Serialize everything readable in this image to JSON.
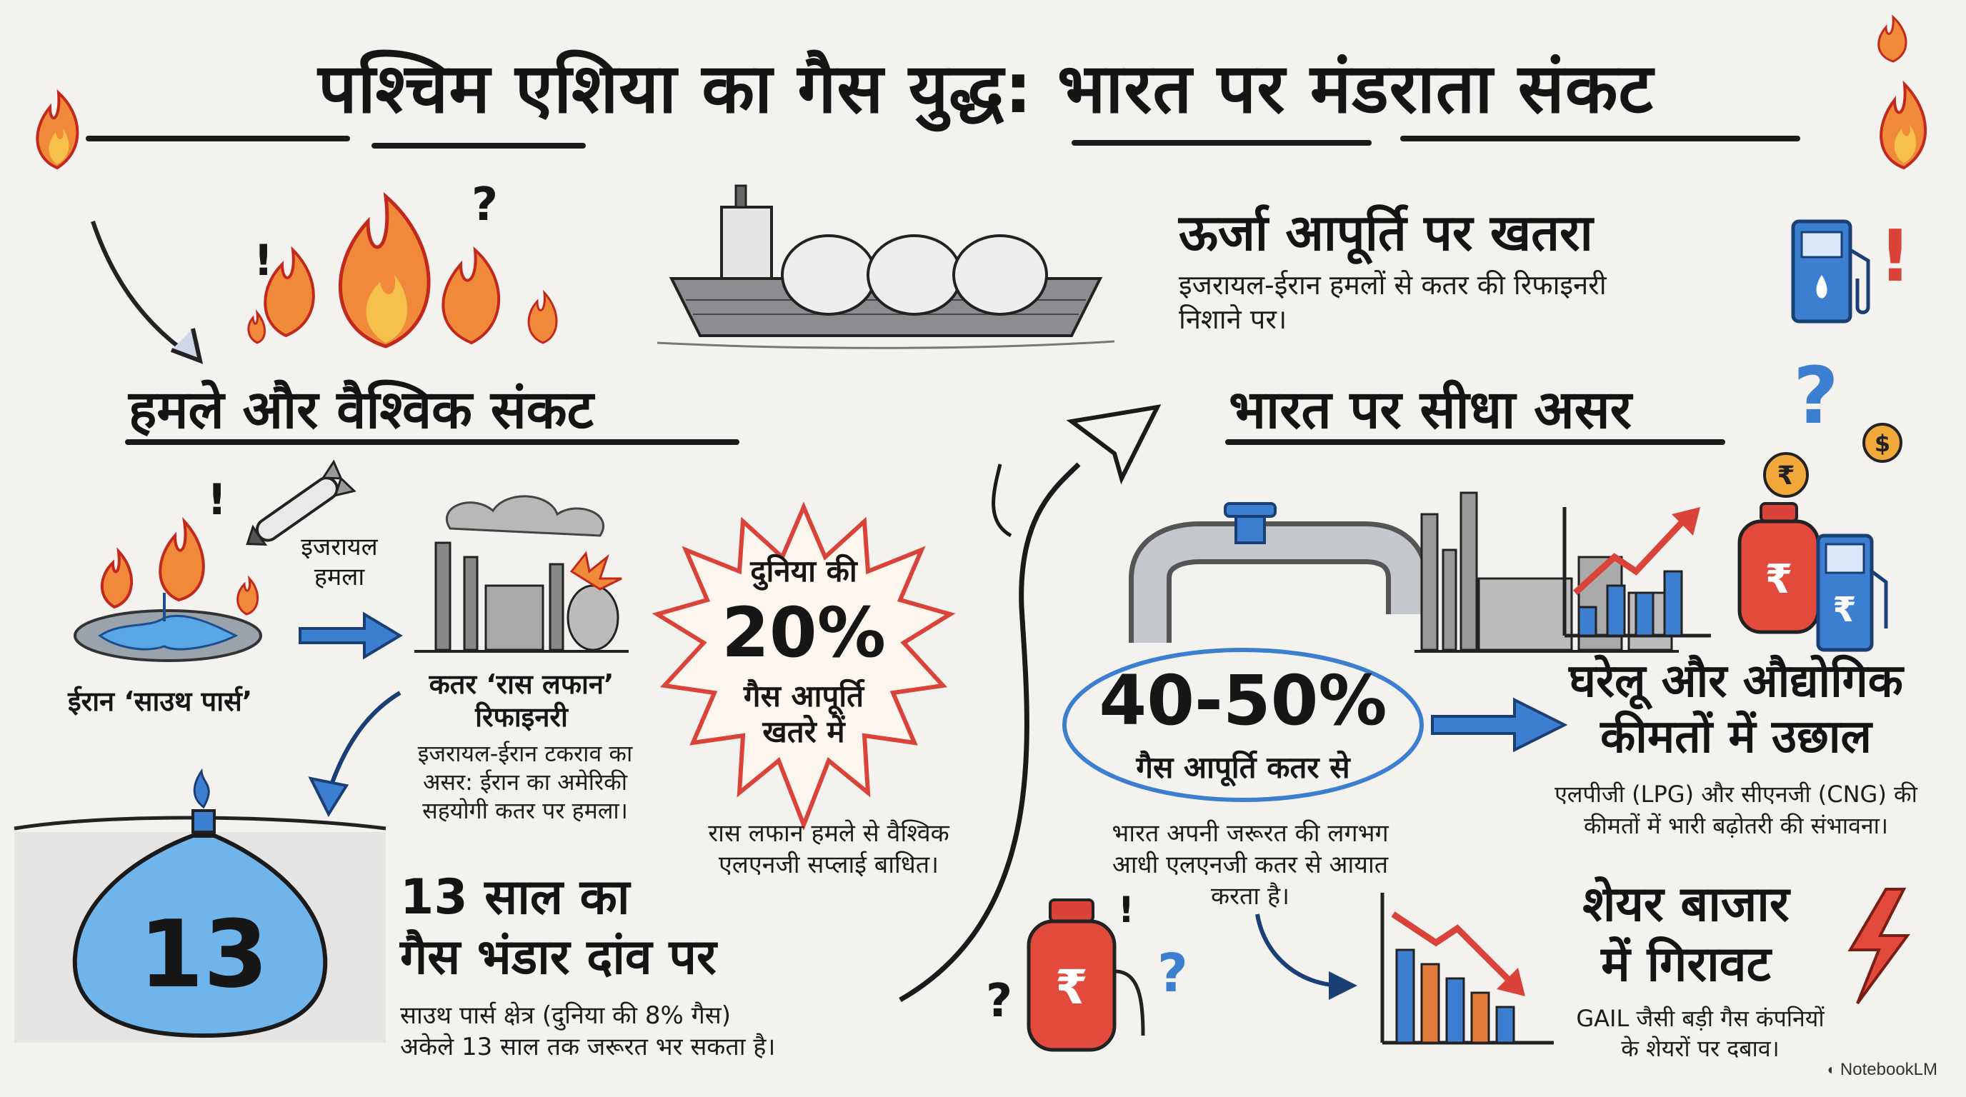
{
  "title": "पश्चिम एशिया का गैस युद्ध: भारत पर मंडराता संकट",
  "attacks": {
    "heading": "हमले और वैश्विक संकट",
    "israel_attack": "इजरायल\nहमला",
    "iran_south_pars": "ईरान ‘साउथ पार्स’",
    "qatar_refinery": "कतर ‘रास लफान’\nरिफाइनरी",
    "qatar_desc": "इजरायल-ईरान टकराव का\nअसर: ईरान का अमेरिकी\nसहयोगी कतर पर हमला।"
  },
  "burst": {
    "line1": "दुनिया की",
    "percent": "20%",
    "line2": "गैस आपूर्ति\nखतरे में",
    "caption": "रास लफान हमले से वैश्विक\nएलएनजी सप्लाई बाधित।"
  },
  "reserve": {
    "number": "13",
    "heading": "13 साल का\nगैस भंडार दांव पर",
    "desc": "साउथ पार्स क्षेत्र (दुनिया की 8% गैस)\nअकेले 13 साल तक जरूरत भर सकता है।"
  },
  "energy": {
    "heading": "ऊर्जा आपूर्ति पर खतरा",
    "desc": "इजरायल-ईरान हमलों से कतर की रिफाइनरी\nनिशाने पर।"
  },
  "india": {
    "heading": "भारत पर सीधा असर",
    "percent": "40-50%",
    "percent_label": "गैस आपूर्ति कतर से",
    "desc": "भारत अपनी जरूरत की लगभग\nआधी एलएनजी कतर से आयात\nकरता है।"
  },
  "prices": {
    "heading": "घरेलू और औद्योगिक\nकीमतों में उछाल",
    "desc": "एलपीजी (LPG) और सीएनजी (CNG) की\nकीमतों में भारी बढ़ोतरी की संभावना।"
  },
  "market": {
    "heading": "शेयर बाजार\nमें गिरावट",
    "desc": "GAIL जैसी बड़ी गैस कंपनियों\nके शेयरों पर दबाव।"
  },
  "brand": "NotebookLM",
  "colors": {
    "flame": "#e8532a",
    "blue": "#3c7fd0",
    "ink": "#1a1a1a",
    "red": "#d9433a"
  },
  "icons": [
    "fire-icon",
    "tanker-ship-icon",
    "fuel-pump-icon",
    "missile-icon",
    "refinery-icon",
    "pipeline-icon",
    "gas-cylinder-icon",
    "rising-chart-icon",
    "falling-chart-icon",
    "lightning-icon",
    "question-icon",
    "exclamation-icon"
  ]
}
